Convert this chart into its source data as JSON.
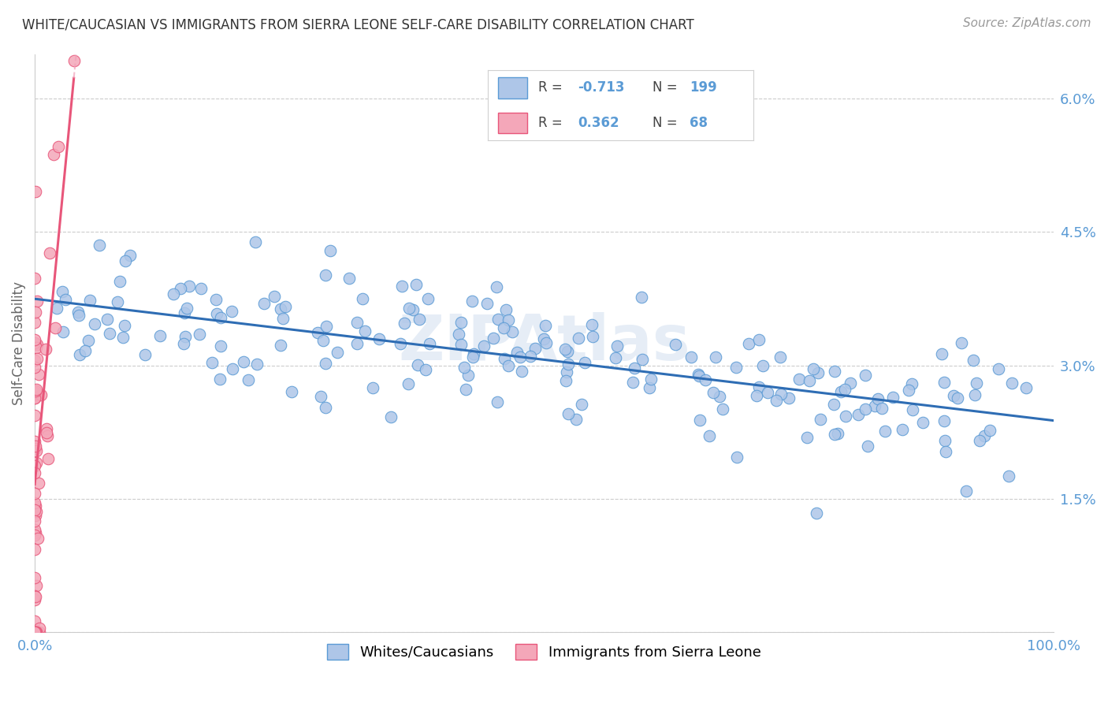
{
  "title": "WHITE/CAUCASIAN VS IMMIGRANTS FROM SIERRA LEONE SELF-CARE DISABILITY CORRELATION CHART",
  "source": "Source: ZipAtlas.com",
  "ylabel": "Self-Care Disability",
  "watermark": "ZIPAtlas",
  "blue_R": -0.713,
  "blue_N": 199,
  "pink_R": 0.362,
  "pink_N": 68,
  "blue_color": "#5b9bd5",
  "blue_fill": "#aec6e8",
  "pink_color": "#e8567a",
  "pink_fill": "#f4a7b9",
  "blue_line_color": "#2e6db4",
  "pink_line_color": "#e8567a",
  "pink_dash_color": "#f0a0b8",
  "bg_color": "#ffffff",
  "grid_color": "#cccccc",
  "title_color": "#333333",
  "source_color": "#999999",
  "axis_label_color": "#666666",
  "tick_color": "#5b9bd5",
  "ylim": [
    0.0,
    0.065
  ],
  "xlim": [
    0.0,
    1.0
  ],
  "yticks": [
    0.0,
    0.015,
    0.03,
    0.045,
    0.06
  ],
  "ytick_labels": [
    "",
    "1.5%",
    "3.0%",
    "4.5%",
    "6.0%"
  ],
  "xtick_labels": [
    "0.0%",
    "100.0%"
  ],
  "blue_line_y0": 0.036,
  "blue_line_y1": 0.026,
  "pink_line_y0": 0.016,
  "pink_line_slope": 0.45
}
